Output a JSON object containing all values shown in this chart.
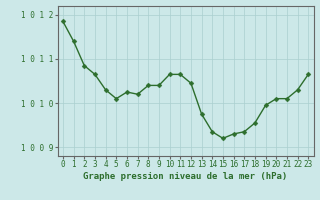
{
  "x": [
    0,
    1,
    2,
    3,
    4,
    5,
    6,
    7,
    8,
    9,
    10,
    11,
    12,
    13,
    14,
    15,
    16,
    17,
    18,
    19,
    20,
    21,
    22,
    23
  ],
  "y": [
    1011.85,
    1011.4,
    1010.85,
    1010.65,
    1010.3,
    1010.1,
    1010.25,
    1010.2,
    1010.4,
    1010.4,
    1010.65,
    1010.65,
    1010.45,
    1009.75,
    1009.35,
    1009.2,
    1009.3,
    1009.35,
    1009.55,
    1009.95,
    1010.1,
    1010.1,
    1010.3,
    1010.65
  ],
  "line_color": "#2d6e2d",
  "marker_color": "#2d6e2d",
  "bg_color": "#cce8e8",
  "grid_color": "#aacfcf",
  "axis_color": "#666666",
  "xlabel": "Graphe pression niveau de la mer (hPa)",
  "xlabel_color": "#2d6e2d",
  "tick_label_color": "#2d6e2d",
  "ylim": [
    1008.8,
    1012.2
  ],
  "yticks": [
    1009,
    1010,
    1011,
    1012
  ],
  "ytick_labels": [
    "1 0 0 9",
    "1 0 1 0",
    "1 0 1 1",
    "1 0 1 2"
  ],
  "xticks": [
    0,
    1,
    2,
    3,
    4,
    5,
    6,
    7,
    8,
    9,
    10,
    11,
    12,
    13,
    14,
    15,
    16,
    17,
    18,
    19,
    20,
    21,
    22,
    23
  ],
  "xlabel_fontsize": 6.5,
  "tick_fontsize": 5.5,
  "ytick_fontsize": 5.5,
  "linewidth": 1.0,
  "markersize": 2.5
}
